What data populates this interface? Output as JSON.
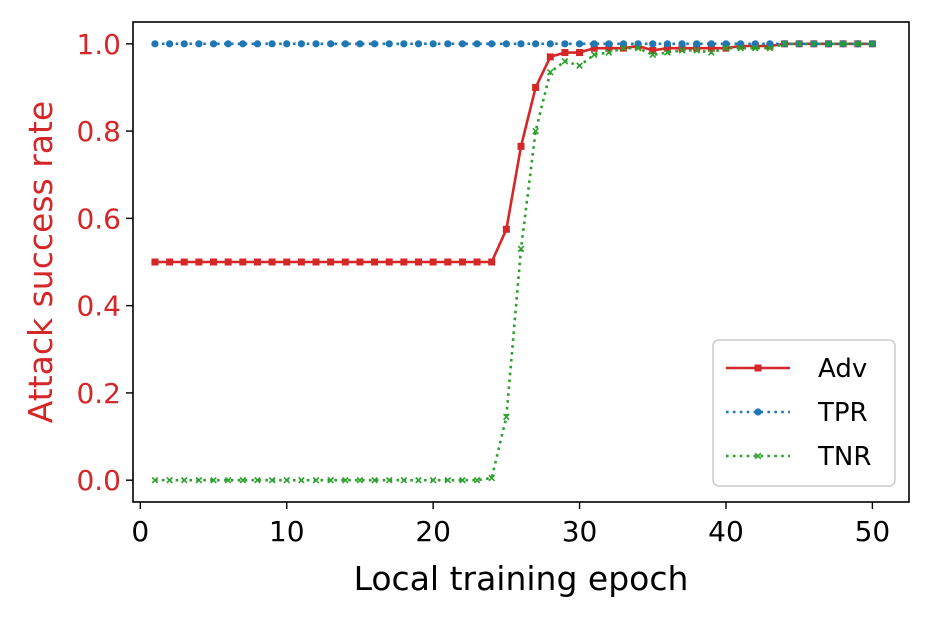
{
  "chart_data": {
    "type": "line",
    "xlabel": "Local training epoch",
    "ylabel": "Attack success rate",
    "xlim": [
      -0.5,
      52.5
    ],
    "ylim": [
      -0.05,
      1.05
    ],
    "xticks": [
      0,
      10,
      20,
      30,
      40,
      50
    ],
    "yticks": [
      0.0,
      0.2,
      0.4,
      0.6,
      0.8,
      1.0
    ],
    "xtick_labels": [
      "0",
      "10",
      "20",
      "30",
      "40",
      "50"
    ],
    "ytick_labels": [
      "0.0",
      "0.2",
      "0.4",
      "0.6",
      "0.8",
      "1.0"
    ],
    "ylabel_color": "#d62728",
    "legend_position": "lower right",
    "grid": false,
    "x": [
      1,
      2,
      3,
      4,
      5,
      6,
      7,
      8,
      9,
      10,
      11,
      12,
      13,
      14,
      15,
      16,
      17,
      18,
      19,
      20,
      21,
      22,
      23,
      24,
      25,
      26,
      27,
      28,
      29,
      30,
      31,
      32,
      33,
      34,
      35,
      36,
      37,
      38,
      39,
      40,
      41,
      42,
      43,
      44,
      45,
      46,
      47,
      48,
      49,
      50
    ],
    "series": [
      {
        "name": "Adv",
        "color": "#d62728",
        "linestyle": "solid",
        "marker": "square",
        "values": [
          0.5,
          0.5,
          0.5,
          0.5,
          0.5,
          0.5,
          0.5,
          0.5,
          0.5,
          0.5,
          0.5,
          0.5,
          0.5,
          0.5,
          0.5,
          0.5,
          0.5,
          0.5,
          0.5,
          0.5,
          0.5,
          0.5,
          0.5,
          0.5,
          0.575,
          0.765,
          0.9,
          0.97,
          0.98,
          0.98,
          0.99,
          0.99,
          0.99,
          0.995,
          0.985,
          0.99,
          0.99,
          0.99,
          0.99,
          0.99,
          0.995,
          0.995,
          0.995,
          1.0,
          1.0,
          1.0,
          1.0,
          1.0,
          1.0,
          1.0
        ]
      },
      {
        "name": "TPR",
        "color": "#1f77b4",
        "linestyle": "dotted",
        "marker": "circle",
        "values": [
          1.0,
          1.0,
          1.0,
          1.0,
          1.0,
          1.0,
          1.0,
          1.0,
          1.0,
          1.0,
          1.0,
          1.0,
          1.0,
          1.0,
          1.0,
          1.0,
          1.0,
          1.0,
          1.0,
          1.0,
          1.0,
          1.0,
          1.0,
          1.0,
          1.0,
          1.0,
          1.0,
          1.0,
          1.0,
          1.0,
          1.0,
          1.0,
          1.0,
          1.0,
          1.0,
          1.0,
          1.0,
          1.0,
          1.0,
          1.0,
          1.0,
          1.0,
          1.0,
          1.0,
          1.0,
          1.0,
          1.0,
          1.0,
          1.0,
          1.0
        ]
      },
      {
        "name": "TNR",
        "color": "#2ca02c",
        "linestyle": "dotted",
        "marker": "x",
        "values": [
          0.0,
          0.0,
          0.0,
          0.0,
          0.0,
          0.0,
          0.0,
          0.0,
          0.0,
          0.0,
          0.0,
          0.0,
          0.0,
          0.0,
          0.0,
          0.0,
          0.0,
          0.0,
          0.0,
          0.0,
          0.0,
          0.0,
          0.0,
          0.005,
          0.145,
          0.53,
          0.8,
          0.935,
          0.96,
          0.95,
          0.975,
          0.98,
          0.99,
          0.99,
          0.975,
          0.98,
          0.985,
          0.985,
          0.98,
          0.99,
          0.99,
          0.99,
          0.99,
          1.0,
          1.0,
          1.0,
          1.0,
          1.0,
          1.0,
          1.0
        ]
      }
    ]
  }
}
